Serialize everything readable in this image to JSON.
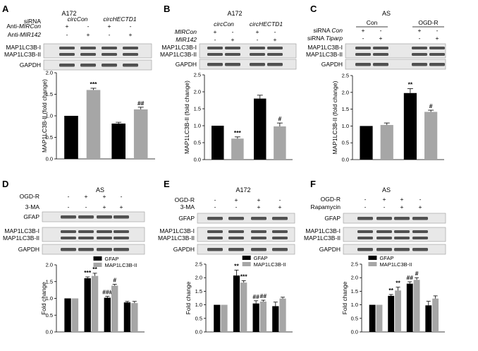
{
  "colors": {
    "dark": "#000000",
    "gray": "#a6a6a6",
    "blot_bg": "#e8e8e8",
    "band": "#2a2a2a"
  },
  "chart_data": [
    {
      "panel": "A",
      "type": "bar",
      "title": "A172",
      "ylabel": "MAP1LC3B-II (fold change)",
      "ylim": [
        0,
        2.0
      ],
      "ticks": [
        "0.0",
        "0.5",
        "1.0",
        "1.5",
        "2.0"
      ],
      "treatment_rows": [
        {
          "label": "Anti-MIRCon",
          "label_prefix": "Anti-",
          "label_italic": "MIRCon",
          "signs": [
            "+",
            "-",
            "+",
            "-"
          ]
        },
        {
          "label": "Anti-MIR142",
          "label_prefix": "Anti-",
          "label_italic": "MIR142",
          "signs": [
            "-",
            "+",
            "-",
            "+"
          ]
        }
      ],
      "group_header": "siRNA",
      "groups": [
        {
          "label": "circCon"
        },
        {
          "label": "circHECTD1"
        }
      ],
      "blots": [
        [
          "MAP1LC3B-I",
          "MAP1LC3B-II"
        ],
        [
          "GAPDH"
        ]
      ],
      "bars": [
        {
          "value": 1.0,
          "color": "dark",
          "annot": "",
          "err": 0
        },
        {
          "value": 1.6,
          "color": "gray",
          "annot": "***",
          "err": 0.04
        },
        {
          "value": 0.82,
          "color": "dark",
          "annot": "",
          "err": 0.03
        },
        {
          "value": 1.15,
          "color": "gray",
          "annot": "##",
          "err": 0.05
        }
      ]
    },
    {
      "panel": "B",
      "type": "bar",
      "title": "A172",
      "ylabel": "MAP1LC3B-II (fold change)",
      "ylim": [
        0,
        2.5
      ],
      "ticks": [
        "0.0",
        "0.5",
        "1.0",
        "1.5",
        "2.0",
        "2.5"
      ],
      "treatment_rows": [
        {
          "label": "MIRCon",
          "label_prefix": "",
          "label_italic": "MIRCon",
          "signs": [
            "+",
            "-",
            "+",
            "-"
          ]
        },
        {
          "label": "MIR142",
          "label_prefix": "",
          "label_italic": "MIR142",
          "signs": [
            "-",
            "+",
            "-",
            "+"
          ]
        }
      ],
      "group_header": "",
      "groups": [
        {
          "label": "circCon"
        },
        {
          "label": "circHECTD1"
        }
      ],
      "blots": [
        [
          "MAP1LC3B-I",
          "MAP1LC3B-II"
        ],
        [
          "GAPDH"
        ]
      ],
      "bars": [
        {
          "value": 1.0,
          "color": "dark",
          "annot": "",
          "err": 0
        },
        {
          "value": 0.62,
          "color": "gray",
          "annot": "***",
          "err": 0.05
        },
        {
          "value": 1.8,
          "color": "dark",
          "annot": "",
          "err": 0.1
        },
        {
          "value": 0.98,
          "color": "gray",
          "annot": "#",
          "err": 0.1
        }
      ]
    },
    {
      "panel": "C",
      "type": "bar",
      "title": "AS",
      "ylabel": "MAP1LC3B-II (fold change)",
      "ylim": [
        0,
        2.5
      ],
      "ticks": [
        "0.0",
        "0.5",
        "1.0",
        "1.5",
        "2.0",
        "2.5"
      ],
      "treatment_rows": [
        {
          "label": "siRNA Con",
          "label_prefix": "siRNA ",
          "label_italic": "Con",
          "signs": [
            "+",
            "-",
            "+",
            "-"
          ]
        },
        {
          "label": "siRNA Tiparp",
          "label_prefix": "siRNA ",
          "label_italic": "Tiparp",
          "signs": [
            "-",
            "+",
            "-",
            "+"
          ]
        }
      ],
      "group_header": "",
      "groups": [
        {
          "label": "Con"
        },
        {
          "label": "OGD-R"
        }
      ],
      "blots": [
        [
          "MAP1LC3B-I",
          "MAP1LC3B-II"
        ],
        [
          "GAPDH"
        ]
      ],
      "bars": [
        {
          "value": 1.0,
          "color": "dark",
          "annot": "",
          "err": 0
        },
        {
          "value": 1.03,
          "color": "gray",
          "annot": "",
          "err": 0.06
        },
        {
          "value": 1.98,
          "color": "dark",
          "annot": "**",
          "err": 0.13
        },
        {
          "value": 1.42,
          "color": "gray",
          "annot": "#",
          "err": 0.05
        }
      ]
    },
    {
      "panel": "D",
      "type": "bar",
      "title": "AS",
      "ylabel": "Fold change",
      "ylim": [
        0,
        2.0
      ],
      "ticks": [
        "0.0",
        "0.5",
        "1.0",
        "1.5",
        "2.0"
      ],
      "treatment_rows": [
        {
          "label": "OGD-R",
          "label_prefix": "OGD-R",
          "label_italic": "",
          "signs": [
            "-",
            "+",
            "+",
            "-"
          ]
        },
        {
          "label": "3-MA",
          "label_prefix": "3-MA",
          "label_italic": "",
          "signs": [
            "-",
            "-",
            "+",
            "+"
          ]
        }
      ],
      "blots": [
        [
          "GFAP"
        ],
        [
          "MAP1LC3B-I",
          "MAP1LC3B-II"
        ],
        [
          "GAPDH"
        ]
      ],
      "legend": [
        "GFAP",
        "MAP1LC3B-II"
      ],
      "series": [
        {
          "name": "GFAP",
          "values": [
            1.0,
            1.6,
            1.02,
            0.88
          ],
          "errors": [
            0,
            0.04,
            0.04,
            0.03
          ],
          "annots": [
            "",
            "***",
            "###",
            ""
          ]
        },
        {
          "name": "MAP1LC3B-II",
          "values": [
            1.0,
            1.67,
            1.38,
            0.86
          ],
          "errors": [
            0,
            0.08,
            0.04,
            0.05
          ],
          "annots": [
            "",
            "**",
            "#",
            ""
          ]
        }
      ]
    },
    {
      "panel": "E",
      "type": "bar",
      "title": "A172",
      "ylabel": "Fold change",
      "ylim": [
        0,
        2.5
      ],
      "ticks": [
        "0.0",
        "0.5",
        "1.0",
        "1.5",
        "2.0",
        "2.5"
      ],
      "treatment_rows": [
        {
          "label": "OGD-R",
          "label_prefix": "OGD-R",
          "label_italic": "",
          "signs": [
            "-",
            "+",
            "+",
            "-"
          ]
        },
        {
          "label": "3-MA",
          "label_prefix": "3-MA",
          "label_italic": "",
          "signs": [
            "-",
            "-",
            "+",
            "+"
          ]
        }
      ],
      "blots": [
        [
          "GFAP"
        ],
        [
          "MAP1LC3B-I",
          "MAP1LC3B-II"
        ],
        [
          "GAPDH"
        ]
      ],
      "legend": [
        "GFAP",
        "MAP1LC3B-II"
      ],
      "series": [
        {
          "name": "GFAP",
          "values": [
            1.0,
            2.08,
            1.05,
            0.95
          ],
          "errors": [
            0,
            0.2,
            0.1,
            0.15
          ],
          "annots": [
            "",
            "**",
            "##",
            ""
          ]
        },
        {
          "name": "MAP1LC3B-II",
          "values": [
            1.0,
            1.82,
            1.12,
            1.23
          ],
          "errors": [
            0,
            0.07,
            0.05,
            0.05
          ],
          "annots": [
            "",
            "***",
            "##",
            ""
          ]
        }
      ]
    },
    {
      "panel": "F",
      "type": "bar",
      "title": "AS",
      "ylabel": "Fold change",
      "ylim": [
        0,
        2.5
      ],
      "ticks": [
        "0.0",
        "0.5",
        "1.0",
        "1.5",
        "2.0",
        "2.5"
      ],
      "treatment_rows": [
        {
          "label": "OGD-R",
          "label_prefix": "OGD-R",
          "label_italic": "",
          "signs": [
            "-",
            "+",
            "+",
            "-"
          ]
        },
        {
          "label": "Rapamycin",
          "label_prefix": "Rapamycin",
          "label_italic": "",
          "signs": [
            "-",
            "-",
            "+",
            "+"
          ]
        }
      ],
      "blots": [
        [
          "GFAP"
        ],
        [
          "MAP1LC3B-I",
          "MAP1LC3B-II"
        ],
        [
          "GAPDH"
        ]
      ],
      "legend": [
        "GFAP",
        "MAP1LC3B-II"
      ],
      "series": [
        {
          "name": "GFAP",
          "values": [
            1.0,
            1.33,
            1.78,
            0.98
          ],
          "errors": [
            0,
            0.05,
            0.07,
            0.15
          ],
          "annots": [
            "",
            "**",
            "##",
            ""
          ]
        },
        {
          "name": "MAP1LC3B-II",
          "values": [
            1.0,
            1.53,
            1.92,
            1.23
          ],
          "errors": [
            0,
            0.12,
            0.08,
            0.1
          ],
          "annots": [
            "",
            "**",
            "#",
            ""
          ]
        }
      ]
    }
  ]
}
